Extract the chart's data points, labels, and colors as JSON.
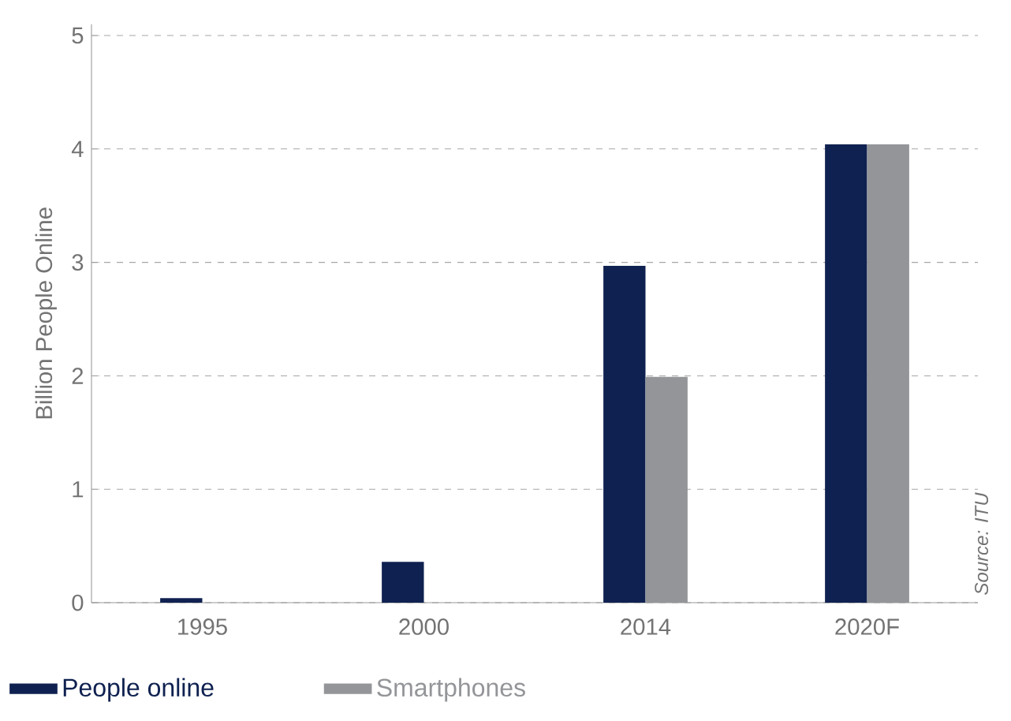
{
  "chart_data": {
    "type": "bar",
    "ylabel": "Billion People Online",
    "categories": [
      "1995",
      "2000",
      "2014",
      "2020F"
    ],
    "series": [
      {
        "name": "People online",
        "color": "#0f2150",
        "values": [
          0.04,
          0.36,
          2.97,
          4.04
        ]
      },
      {
        "name": "Smartphones",
        "color": "#939598",
        "values": [
          null,
          null,
          1.99,
          4.04
        ]
      }
    ],
    "ylim": [
      0,
      5.1
    ],
    "yticks": [
      0,
      1,
      2,
      3,
      4,
      5
    ],
    "grid": "y",
    "legend": "bottom left",
    "annotations": [
      "Source: ITU"
    ]
  }
}
